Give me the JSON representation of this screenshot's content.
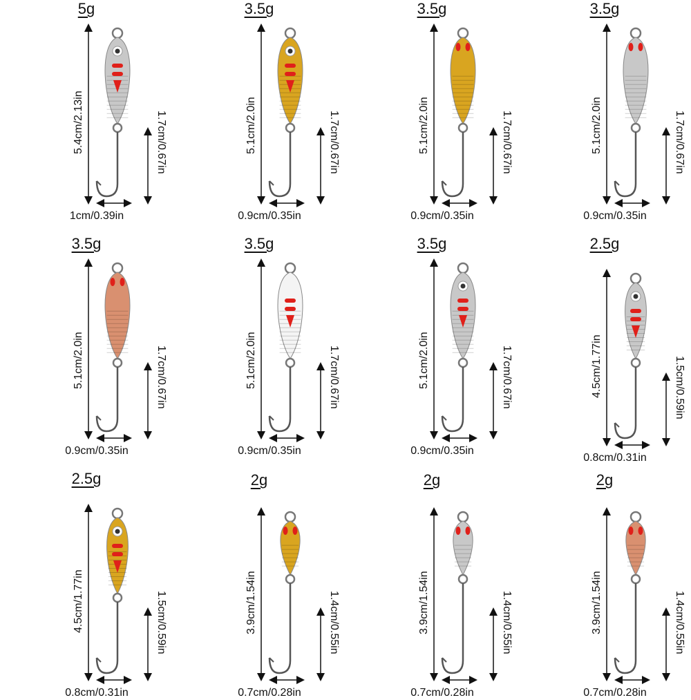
{
  "lures": [
    {
      "weight": "5g",
      "length": "5.4cm/2.13in",
      "hook": "1.7cm/0.67in",
      "width": "1cm/0.39in",
      "finish": "silver",
      "style": "eye"
    },
    {
      "weight": "3.5g",
      "length": "5.1cm/2.0in",
      "hook": "1.7cm/0.67in",
      "width": "0.9cm/0.35in",
      "finish": "gold",
      "style": "eye"
    },
    {
      "weight": "3.5g",
      "length": "5.1cm/2.0in",
      "hook": "1.7cm/0.67in",
      "width": "0.9cm/0.35in",
      "finish": "gold",
      "style": "scale"
    },
    {
      "weight": "3.5g",
      "length": "5.1cm/2.0in",
      "hook": "1.7cm/0.67in",
      "width": "0.9cm/0.35in",
      "finish": "silver",
      "style": "scale"
    },
    {
      "weight": "3.5g",
      "length": "5.1cm/2.0in",
      "hook": "1.7cm/0.67in",
      "width": "0.9cm/0.35in",
      "finish": "copper",
      "style": "scale"
    },
    {
      "weight": "3.5g",
      "length": "5.1cm/2.0in",
      "hook": "1.7cm/0.67in",
      "width": "0.9cm/0.35in",
      "finish": "white",
      "style": "plain"
    },
    {
      "weight": "3.5g",
      "length": "5.1cm/2.0in",
      "hook": "1.7cm/0.67in",
      "width": "0.9cm/0.35in",
      "finish": "silver",
      "style": "eye"
    },
    {
      "weight": "2.5g",
      "length": "4.5cm/1.77in",
      "hook": "1.5cm/0.59in",
      "width": "0.8cm/0.31in",
      "finish": "silver",
      "style": "eye"
    },
    {
      "weight": "2.5g",
      "length": "4.5cm/1.77in",
      "hook": "1.5cm/0.59in",
      "width": "0.8cm/0.31in",
      "finish": "gold",
      "style": "eye"
    },
    {
      "weight": "2g",
      "length": "3.9cm/1.54in",
      "hook": "1.4cm/0.55in",
      "width": "0.7cm/0.28in",
      "finish": "gold",
      "style": "scale"
    },
    {
      "weight": "2g",
      "length": "3.9cm/1.54in",
      "hook": "1.4cm/0.55in",
      "width": "0.7cm/0.28in",
      "finish": "silver",
      "style": "scale"
    },
    {
      "weight": "2g",
      "length": "3.9cm/1.54in",
      "hook": "1.4cm/0.55in",
      "width": "0.7cm/0.28in",
      "finish": "copper",
      "style": "scale"
    }
  ],
  "colors": {
    "red": "#e0201a",
    "silver": "#c8c8c8",
    "gold": "#d9a520",
    "copper": "#d99070",
    "white": "#f4f4f4",
    "hook": "#555555"
  }
}
